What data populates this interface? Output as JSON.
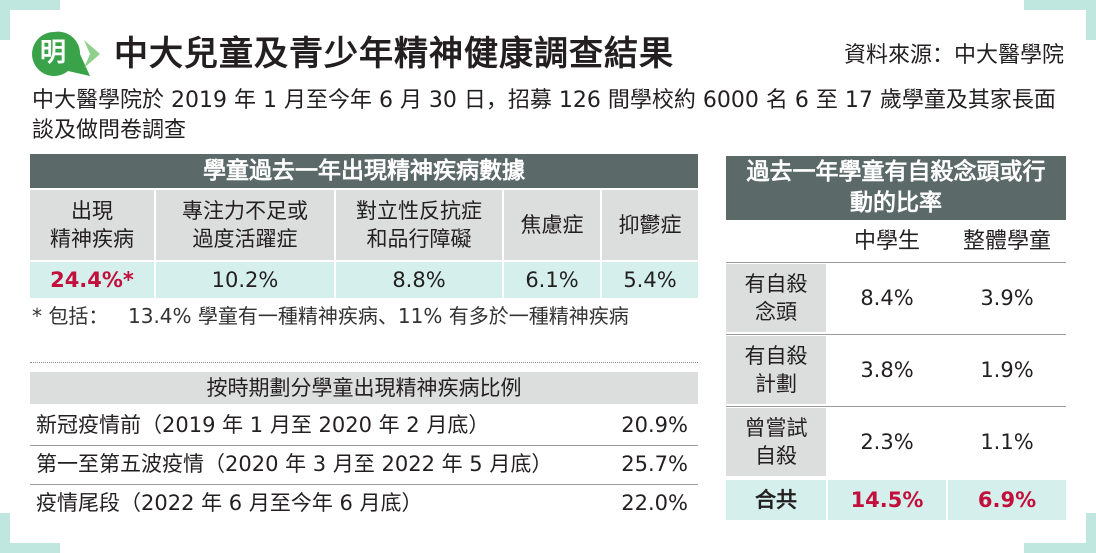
{
  "header": {
    "logo_text": "明",
    "title": "中大兒童及青少年精神健康調查結果",
    "source": "資料來源：中大醫學院"
  },
  "intro": "中大醫學院於 2019 年 1 月至今年 6 月 30 日，招募 126 間學校約 6000 名 6 至 17 歲學童及其家長面談及做問卷調查",
  "disorders_table": {
    "title": "學童過去一年出現精神疾病數據",
    "columns": [
      {
        "label": "出現\n精神疾病",
        "value": "24.4%*"
      },
      {
        "label": "專注力不足或\n過度活躍症",
        "value": "10.2%"
      },
      {
        "label": "對立性反抗症\n和品行障礙",
        "value": "8.8%"
      },
      {
        "label": "焦慮症",
        "value": "6.1%"
      },
      {
        "label": "抑鬱症",
        "value": "5.4%"
      }
    ],
    "footnote_marker": "* 包括：",
    "footnote_text": "13.4% 學童有一種精神疾病、11% 有多於一種精神疾病"
  },
  "period_table": {
    "title": "按時期劃分學童出現精神疾病比例",
    "rows": [
      {
        "label": "新冠疫情前（2019 年 1 月至 2020 年 2 月底）",
        "value": "20.9%"
      },
      {
        "label": "第一至第五波疫情（2020 年 3 月至 2022 年 5 月底）",
        "value": "25.7%"
      },
      {
        "label": "疫情尾段（2022 年 6 月至今年 6 月底）",
        "value": "22.0%"
      }
    ]
  },
  "suicide_table": {
    "title": "過去一年學童有自殺念頭或行動的比率",
    "col_headers": [
      "中學生",
      "整體學童"
    ],
    "rows": [
      {
        "label": "有自殺\n念頭",
        "secondary": "8.4%",
        "overall": "3.9%"
      },
      {
        "label": "有自殺\n計劃",
        "secondary": "3.8%",
        "overall": "1.9%"
      },
      {
        "label": "曾嘗試\n自殺",
        "secondary": "2.3%",
        "overall": "1.1%"
      }
    ],
    "total": {
      "label": "合共",
      "secondary": "14.5%",
      "overall": "6.9%"
    }
  },
  "colors": {
    "header_dark": "#5b6a69",
    "mint": "#d5f0ec",
    "grey": "#dcdedd",
    "accent_red": "#c20f3c",
    "logo_green": "#3aa34a"
  },
  "chart_data": [
    {
      "type": "table",
      "title": "學童過去一年出現精神疾病數據",
      "categories": [
        "出現精神疾病",
        "專注力不足或過度活躍症",
        "對立性反抗症和品行障礙",
        "焦慮症",
        "抑鬱症"
      ],
      "values": [
        24.4,
        10.2,
        8.8,
        6.1,
        5.4
      ]
    },
    {
      "type": "table",
      "title": "按時期劃分學童出現精神疾病比例",
      "categories": [
        "新冠疫情前（2019 年 1 月至 2020 年 2 月底）",
        "第一至第五波疫情（2020 年 3 月至 2022 年 5 月底）",
        "疫情尾段（2022 年 6 月至今年 6 月底）"
      ],
      "values": [
        20.9,
        25.7,
        22.0
      ]
    },
    {
      "type": "table",
      "title": "過去一年學童有自殺念頭或行動的比率",
      "categories": [
        "有自殺念頭",
        "有自殺計劃",
        "曾嘗試自殺",
        "合共"
      ],
      "series": [
        {
          "name": "中學生",
          "values": [
            8.4,
            3.8,
            2.3,
            14.5
          ]
        },
        {
          "name": "整體學童",
          "values": [
            3.9,
            1.9,
            1.1,
            6.9
          ]
        }
      ]
    }
  ]
}
